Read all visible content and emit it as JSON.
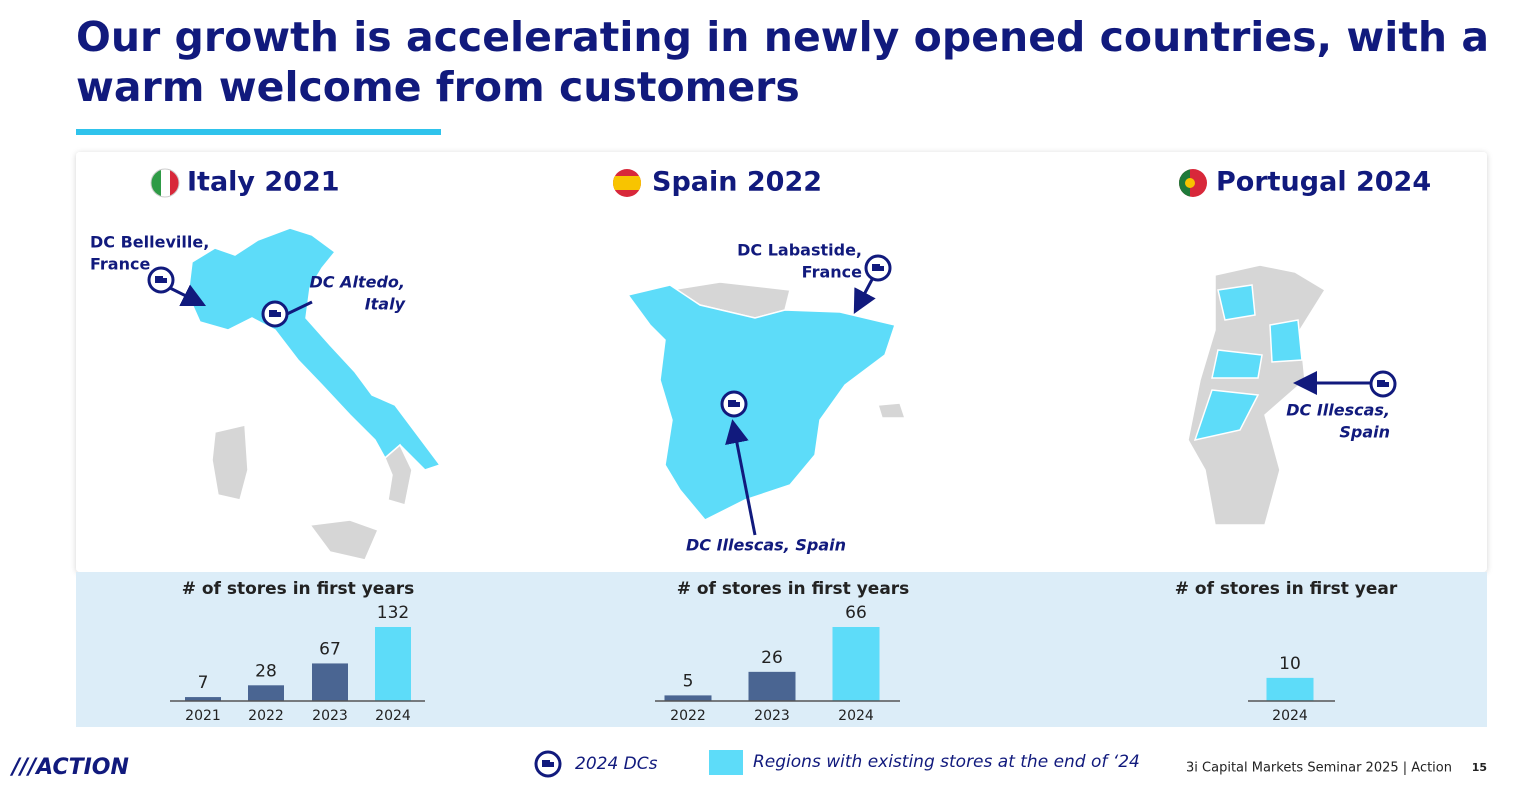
{
  "title": [
    "Our growth is accelerating in newly opened countries, with a",
    "warm welcome from customers"
  ],
  "maps": [
    {
      "country": "Italy 2021",
      "dcs": [
        {
          "lines": [
            "DC Belleville,",
            "France"
          ]
        },
        {
          "lines": [
            "DC Altedo,",
            "Italy"
          ]
        }
      ]
    },
    {
      "country": "Spain 2022",
      "dcs": [
        {
          "lines": [
            "DC Labastide,",
            "France"
          ]
        },
        {
          "lines": [
            "DC Illescas, Spain"
          ]
        }
      ]
    },
    {
      "country": "Portugal 2024",
      "dcs": [
        {
          "lines": [
            "DC Illescas,",
            "Spain"
          ]
        }
      ]
    }
  ],
  "chart_data": [
    {
      "type": "bar",
      "subtitle": "# of stores in first years",
      "categories": [
        "2021",
        "2022",
        "2023",
        "2024"
      ],
      "values": [
        7,
        28,
        67,
        132
      ],
      "colors": [
        "#4a6592",
        "#4a6592",
        "#4a6592",
        "#5ddcf9"
      ],
      "ylim": [
        0,
        132
      ]
    },
    {
      "type": "bar",
      "subtitle": "# of stores in first years",
      "categories": [
        "2022",
        "2023",
        "2024"
      ],
      "values": [
        5,
        26,
        66
      ],
      "colors": [
        "#4a6592",
        "#4a6592",
        "#5ddcf9"
      ],
      "ylim": [
        0,
        66
      ]
    },
    {
      "type": "bar",
      "subtitle": "# of stores in first year",
      "categories": [
        "2024"
      ],
      "values": [
        10
      ],
      "colors": [
        "#5ddcf9"
      ],
      "ylim": [
        0,
        32
      ]
    }
  ],
  "legend": [
    "2024 DCs",
    "Regions with existing stores at the end of ‘24"
  ],
  "footer": {
    "logo": "///ACTION",
    "source": "3i Capital Markets Seminar 2025 | Action",
    "page": "15"
  }
}
